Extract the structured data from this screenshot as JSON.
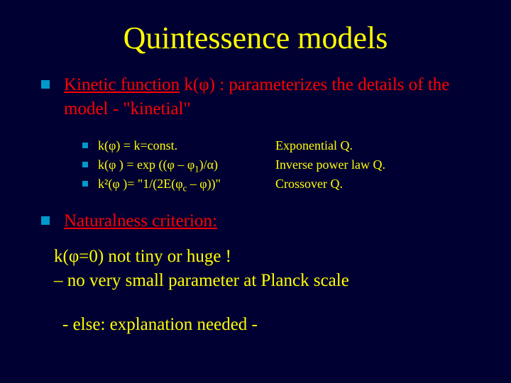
{
  "background_color": "#000033",
  "title": {
    "text": "Quintessence models",
    "color": "#ffff00",
    "fontsize": 44
  },
  "bullet_color": "#0099cc",
  "main_point": {
    "underline_part_text": "Kinetic function",
    "underline_part_color": "#ff0000",
    "after_text": " k(φ) : parameterizes the details of the model   -  \"kinetial\"",
    "after_color": "#ff0000",
    "fontsize": 25
  },
  "sub_items": [
    {
      "left": "k(φ)  =  k=const.",
      "right": "Exponential Q."
    },
    {
      "left": "k(φ ) =  exp ((φ – φ₁)/α)",
      "right": "Inverse power law Q."
    },
    {
      "left": "k²(φ )= \"1/(2E(φc – φ))\"",
      "right": "Crossover Q."
    }
  ],
  "sub_fontsize": 18,
  "sub_left_color": "#ffff00",
  "sub_right_color": "#ffff00",
  "naturalness": {
    "text": "Naturalness criterion:",
    "color": "#ff0000",
    "fontsize": 25
  },
  "plain_line1": "k(φ=0)  not tiny or huge !\n–  no very small parameter at Planck scale",
  "plain_line2": "- else: explanation needed -",
  "plain_color": "#ffff00",
  "plain_fontsize": 25
}
